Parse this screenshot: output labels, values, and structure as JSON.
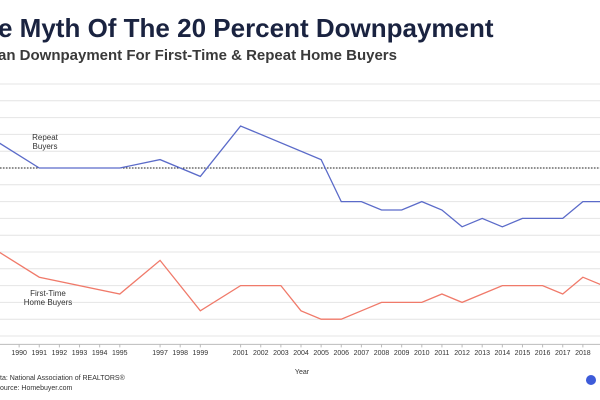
{
  "chart_data": {
    "type": "line",
    "title": "e Myth Of The 20 Percent Downpayment",
    "subtitle": "an Downpayment For First-Time & Repeat Home Buyers",
    "x_label": "Year",
    "source_lines": [
      "ta: National Association of REALTORS®",
      "ource: Homebuyer.com"
    ],
    "xlim": [
      1989,
      2019
    ],
    "xticks": [
      1990,
      1991,
      1992,
      1993,
      1994,
      1995,
      1997,
      1998,
      1999,
      2001,
      2002,
      2003,
      2004,
      2005,
      2006,
      2007,
      2008,
      2009,
      2010,
      2011,
      2012,
      2013,
      2014,
      2015,
      2016,
      2017,
      2018
    ],
    "ylim": [
      -1,
      32
    ],
    "yticks": [
      0,
      2,
      4,
      6,
      8,
      10,
      12,
      14,
      16,
      18,
      20,
      22,
      24,
      26,
      28,
      30
    ],
    "grid": true,
    "reference_line": 20,
    "series": [
      {
        "name": [
          "Repeat",
          "Buyers"
        ],
        "color": "#5b6bc9",
        "x": [
          1989,
          1991,
          1995,
          1997,
          1999,
          2001,
          2005,
          2006,
          2007,
          2008,
          2009,
          2010,
          2011,
          2012,
          2013,
          2014,
          2015,
          2016,
          2017,
          2018,
          2019
        ],
        "values": [
          23,
          20,
          20,
          21,
          19,
          25,
          21,
          16,
          16,
          15,
          15,
          16,
          15,
          13,
          14,
          13,
          14,
          14,
          14,
          16,
          16
        ]
      },
      {
        "name": [
          "First-Time",
          "Home Buyers"
        ],
        "color": "#f07a6a",
        "x": [
          1989,
          1991,
          1995,
          1997,
          1999,
          2001,
          2002,
          2003,
          2004,
          2005,
          2006,
          2007,
          2008,
          2009,
          2010,
          2011,
          2012,
          2013,
          2014,
          2015,
          2016,
          2017,
          2018,
          2019
        ],
        "values": [
          10,
          7,
          5,
          9,
          3,
          6,
          6,
          6,
          3,
          2,
          2,
          3,
          4,
          4,
          4,
          5,
          4,
          5,
          6,
          6,
          6,
          5,
          7,
          6
        ]
      }
    ]
  }
}
